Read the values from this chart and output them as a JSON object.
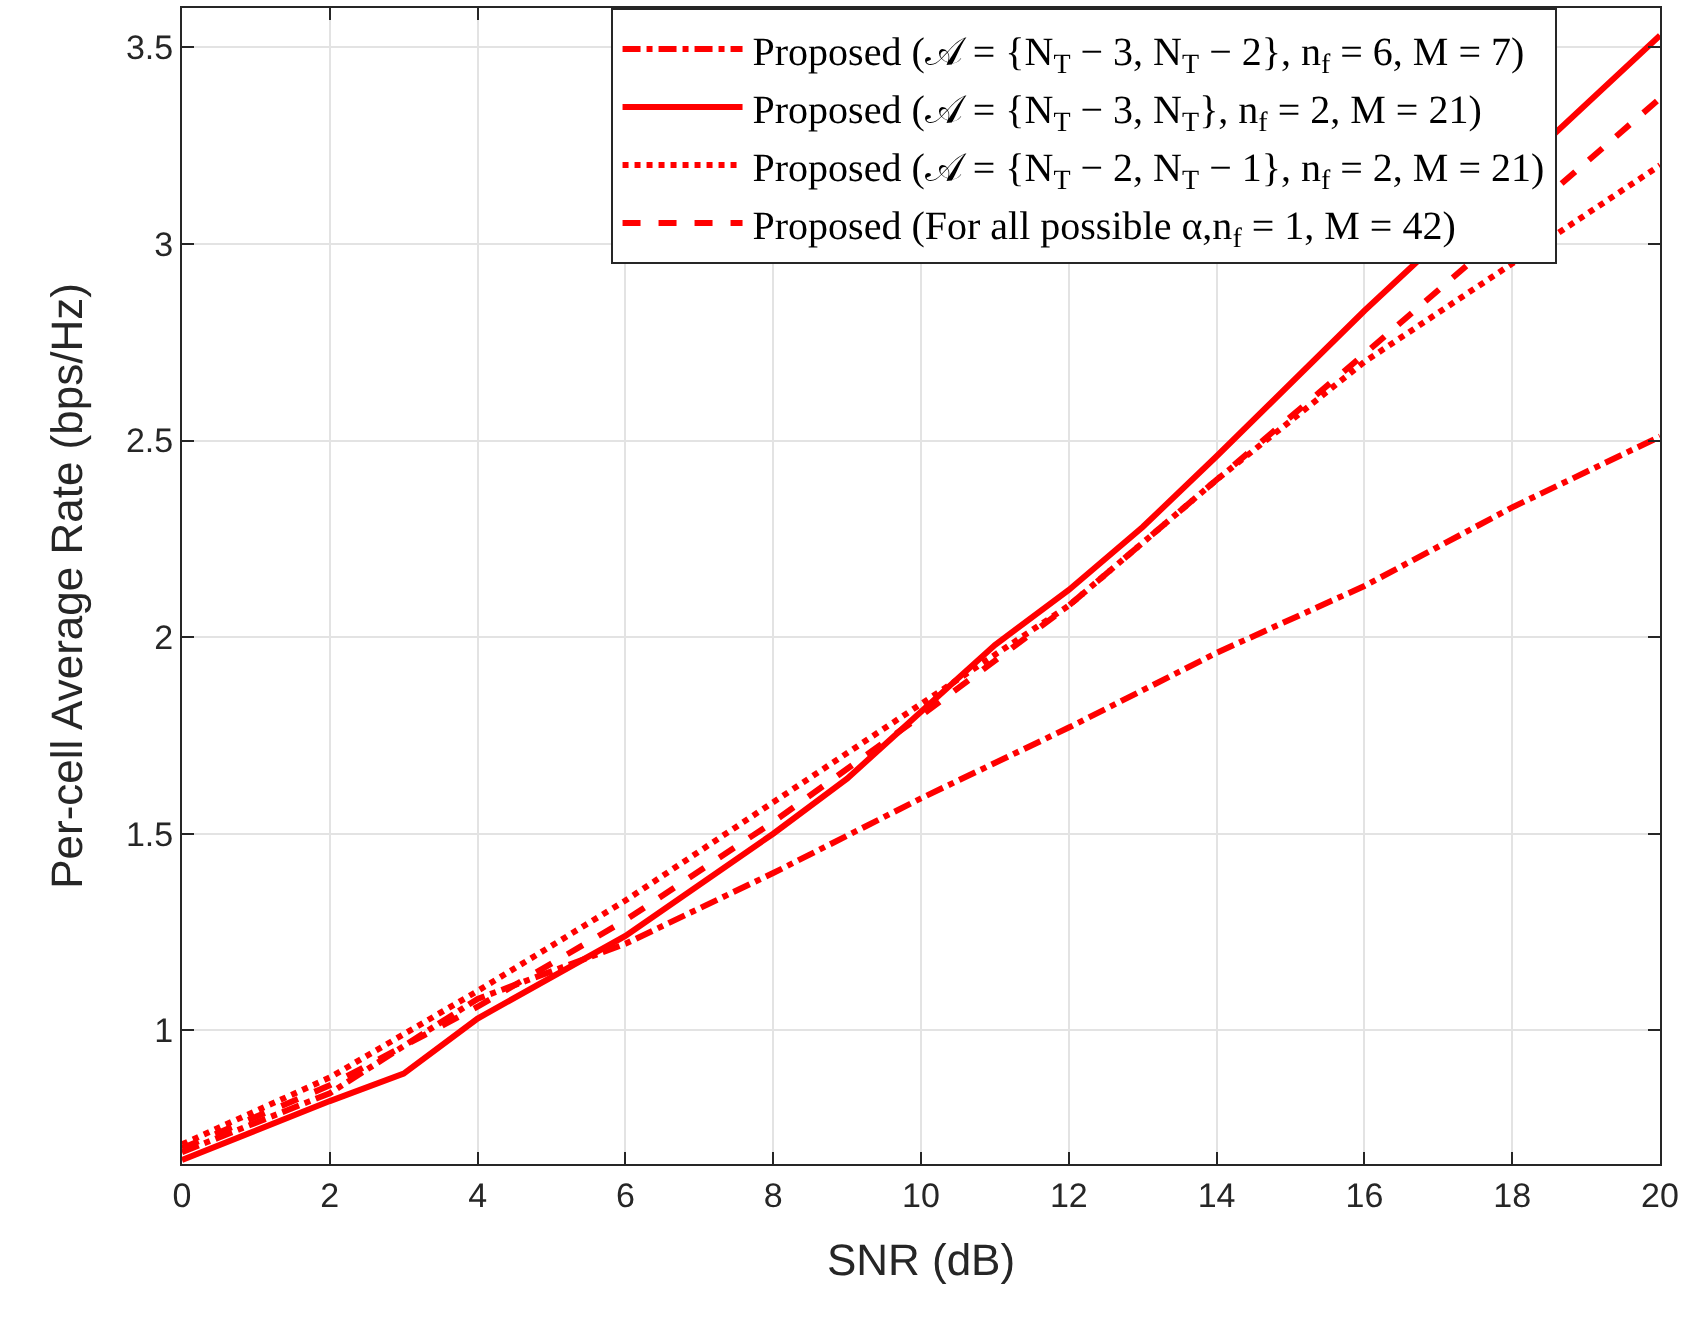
{
  "chart_data": {
    "type": "line",
    "xlabel": "SNR (dB)",
    "ylabel": "Per-cell Average Rate (bps/Hz)",
    "x": [
      0,
      2,
      3,
      4,
      6,
      8,
      9,
      10,
      11,
      12,
      13,
      14,
      16,
      18,
      20
    ],
    "series": [
      {
        "name": "Proposed (𝒜 = {N$_{T}$ − 3, N$_{T}$ − 2}, n$_{f}$ = 6, M = 7)",
        "color": "#ff0000",
        "line_style": "dashdot",
        "values": [
          0.69,
          0.84,
          null,
          1.08,
          1.22,
          1.4,
          null,
          1.59,
          null,
          1.77,
          null,
          1.96,
          2.13,
          2.33,
          2.51
        ]
      },
      {
        "name": "Proposed (𝒜 = {N$_{T}$ − 3, N$_{T}$}, n$_{f}$ = 2, M = 21)",
        "color": "#ff0000",
        "line_style": "solid",
        "values": [
          0.67,
          0.82,
          0.89,
          1.03,
          1.24,
          1.5,
          1.64,
          1.81,
          1.98,
          2.12,
          2.28,
          2.46,
          2.83,
          null,
          3.53
        ]
      },
      {
        "name": "Proposed (𝒜 = {N$_{T}$ − 2, N$_{T}$ − 1}, n$_{f}$ = 2, M = 21)",
        "color": "#ff0000",
        "line_style": "dotted",
        "values": [
          0.71,
          0.88,
          null,
          1.1,
          1.33,
          1.58,
          null,
          1.83,
          null,
          2.08,
          null,
          2.4,
          2.7,
          2.95,
          3.2
        ]
      },
      {
        "name": "Proposed (For all possible α,n$_{f}$ = 1, M = 42)",
        "color": "#ff0000",
        "line_style": "dashed",
        "values": [
          0.7,
          0.86,
          null,
          1.06,
          1.28,
          1.53,
          null,
          1.8,
          null,
          2.08,
          null,
          2.4,
          2.72,
          null,
          3.37
        ]
      }
    ],
    "xlim": [
      0,
      20
    ],
    "xticks": [
      0,
      2,
      4,
      6,
      8,
      10,
      12,
      14,
      16,
      18,
      20
    ],
    "ylim": [
      0.66,
      3.6
    ],
    "yticks": [
      1,
      1.5,
      2,
      2.5,
      3,
      3.5
    ],
    "grid": true,
    "legend": "top right",
    "marker": "none"
  }
}
